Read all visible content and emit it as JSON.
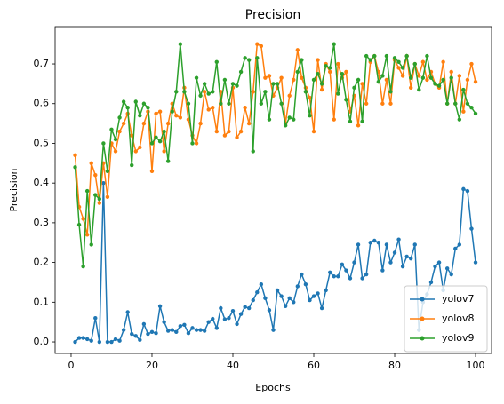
{
  "chart_data": {
    "type": "line",
    "title": "Precision",
    "xlabel": "Epochs",
    "ylabel": "Precision",
    "x": [
      1,
      2,
      3,
      4,
      5,
      6,
      7,
      8,
      9,
      10,
      11,
      12,
      13,
      14,
      15,
      16,
      17,
      18,
      19,
      20,
      21,
      22,
      23,
      24,
      25,
      26,
      27,
      28,
      29,
      30,
      31,
      32,
      33,
      34,
      35,
      36,
      37,
      38,
      39,
      40,
      41,
      42,
      43,
      44,
      45,
      46,
      47,
      48,
      49,
      50,
      51,
      52,
      53,
      54,
      55,
      56,
      57,
      58,
      59,
      60,
      61,
      62,
      63,
      64,
      65,
      66,
      67,
      68,
      69,
      70,
      71,
      72,
      73,
      74,
      75,
      76,
      77,
      78,
      79,
      80,
      81,
      82,
      83,
      84,
      85,
      86,
      87,
      88,
      89,
      90,
      91,
      92,
      93,
      94,
      95,
      96,
      97,
      98,
      99,
      100
    ],
    "series": [
      {
        "name": "yolov7",
        "color": "#1f77b4",
        "values": [
          0.0,
          0.01,
          0.01,
          0.007,
          0.003,
          0.06,
          0.0,
          0.4,
          0.0,
          0.0,
          0.007,
          0.003,
          0.03,
          0.075,
          0.02,
          0.015,
          0.005,
          0.045,
          0.02,
          0.025,
          0.022,
          0.09,
          0.05,
          0.028,
          0.03,
          0.025,
          0.04,
          0.043,
          0.022,
          0.035,
          0.03,
          0.03,
          0.028,
          0.05,
          0.058,
          0.035,
          0.085,
          0.057,
          0.06,
          0.078,
          0.045,
          0.07,
          0.088,
          0.085,
          0.105,
          0.125,
          0.145,
          0.11,
          0.08,
          0.03,
          0.13,
          0.115,
          0.09,
          0.11,
          0.1,
          0.14,
          0.17,
          0.145,
          0.105,
          0.115,
          0.122,
          0.085,
          0.13,
          0.175,
          0.165,
          0.165,
          0.195,
          0.18,
          0.16,
          0.2,
          0.245,
          0.16,
          0.17,
          0.25,
          0.255,
          0.25,
          0.18,
          0.245,
          0.2,
          0.225,
          0.258,
          0.19,
          0.215,
          0.21,
          0.245,
          0.03,
          0.1,
          0.12,
          0.15,
          0.19,
          0.2,
          0.13,
          0.185,
          0.17,
          0.235,
          0.245,
          0.385,
          0.38,
          0.285,
          0.2
        ]
      },
      {
        "name": "yolov8",
        "color": "#ff7f0e",
        "values": [
          0.47,
          0.34,
          0.31,
          0.27,
          0.45,
          0.42,
          0.35,
          0.45,
          0.365,
          0.5,
          0.48,
          0.53,
          0.55,
          0.575,
          0.52,
          0.48,
          0.49,
          0.55,
          0.58,
          0.43,
          0.575,
          0.58,
          0.48,
          0.55,
          0.6,
          0.57,
          0.565,
          0.64,
          0.56,
          0.52,
          0.5,
          0.55,
          0.63,
          0.585,
          0.59,
          0.53,
          0.63,
          0.52,
          0.53,
          0.64,
          0.515,
          0.53,
          0.59,
          0.55,
          0.63,
          0.75,
          0.745,
          0.665,
          0.67,
          0.62,
          0.64,
          0.665,
          0.55,
          0.62,
          0.66,
          0.735,
          0.665,
          0.64,
          0.615,
          0.53,
          0.71,
          0.635,
          0.7,
          0.68,
          0.56,
          0.7,
          0.665,
          0.68,
          0.58,
          0.62,
          0.545,
          0.65,
          0.6,
          0.705,
          0.72,
          0.68,
          0.6,
          0.66,
          0.6,
          0.71,
          0.69,
          0.67,
          0.72,
          0.64,
          0.7,
          0.67,
          0.705,
          0.66,
          0.68,
          0.65,
          0.64,
          0.705,
          0.6,
          0.68,
          0.6,
          0.67,
          0.58,
          0.66,
          0.7,
          0.655
        ]
      },
      {
        "name": "yolov9",
        "color": "#2ca02c",
        "values": [
          0.44,
          0.295,
          0.19,
          0.38,
          0.245,
          0.37,
          0.36,
          0.5,
          0.43,
          0.535,
          0.51,
          0.565,
          0.605,
          0.59,
          0.445,
          0.605,
          0.57,
          0.6,
          0.59,
          0.5,
          0.515,
          0.505,
          0.53,
          0.455,
          0.58,
          0.63,
          0.75,
          0.63,
          0.6,
          0.5,
          0.665,
          0.62,
          0.65,
          0.625,
          0.63,
          0.705,
          0.6,
          0.66,
          0.6,
          0.65,
          0.645,
          0.68,
          0.715,
          0.71,
          0.48,
          0.715,
          0.6,
          0.63,
          0.56,
          0.65,
          0.65,
          0.6,
          0.545,
          0.565,
          0.56,
          0.68,
          0.71,
          0.63,
          0.57,
          0.66,
          0.675,
          0.65,
          0.695,
          0.69,
          0.75,
          0.625,
          0.675,
          0.61,
          0.555,
          0.64,
          0.66,
          0.555,
          0.72,
          0.71,
          0.72,
          0.655,
          0.67,
          0.72,
          0.63,
          0.715,
          0.705,
          0.69,
          0.72,
          0.665,
          0.7,
          0.635,
          0.665,
          0.72,
          0.665,
          0.65,
          0.645,
          0.66,
          0.6,
          0.665,
          0.6,
          0.56,
          0.635,
          0.6,
          0.59,
          0.575
        ]
      }
    ],
    "xlim": [
      -3.95,
      103.95
    ],
    "ylim": [
      -0.029,
      0.794
    ],
    "xticks": [
      0,
      20,
      40,
      60,
      80,
      100
    ],
    "yticks": [
      {
        "value": 0,
        "label": "0.0"
      },
      0.1,
      0.2,
      0.3,
      0.4,
      0.5,
      0.6,
      0.7
    ],
    "legend": "lower right"
  }
}
